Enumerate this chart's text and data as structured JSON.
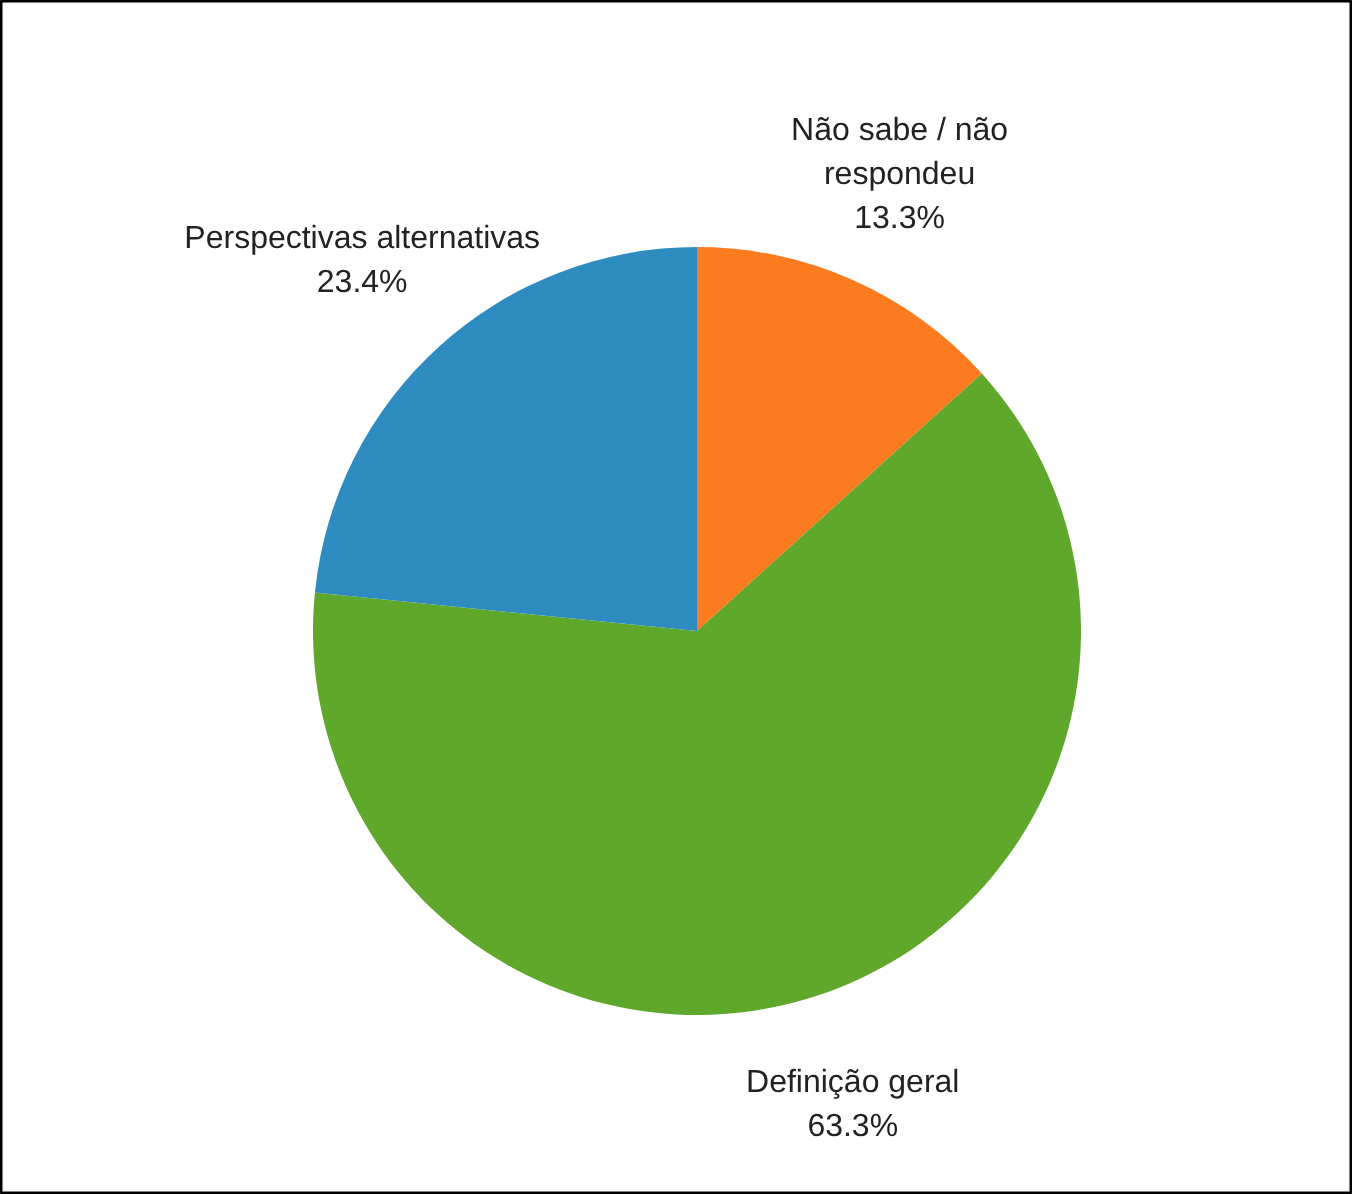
{
  "chart_data": {
    "type": "pie",
    "categories": [
      "Não sabe / não\nrespondeu",
      "Definição geral",
      "Perspectivas alternativas"
    ],
    "values": [
      13.3,
      63.3,
      23.4
    ],
    "colors": [
      "#fb7b1e",
      "#5fa82b",
      "#2e8bc0"
    ],
    "value_labels": [
      "13.3%",
      "63.3%",
      "23.4%"
    ]
  }
}
